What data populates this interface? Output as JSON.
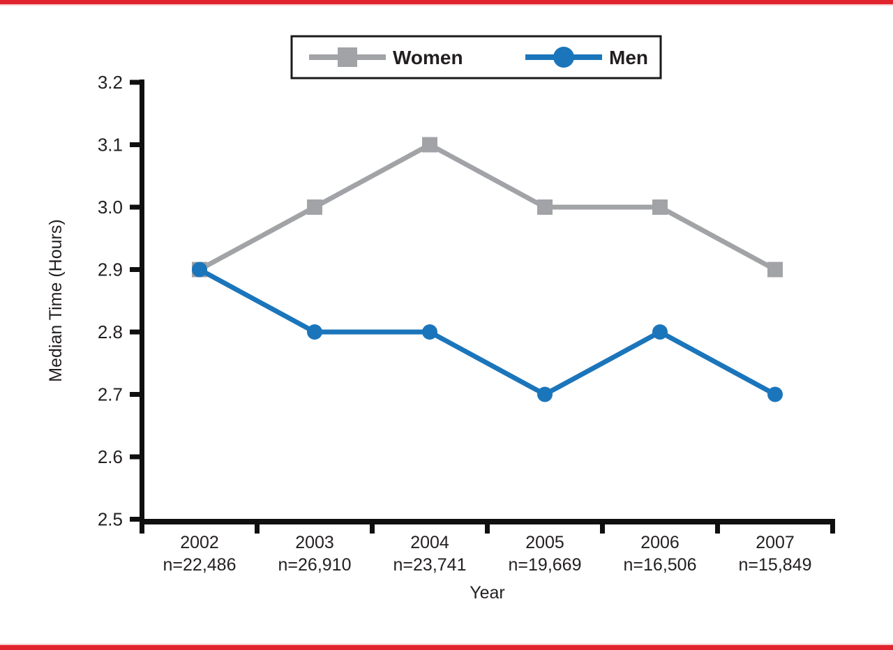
{
  "page": {
    "background": "#ffffff",
    "top_bar_color": "#e1232d",
    "bottom_bar_color": "#e1232d",
    "axis_color": "#0f0f0f",
    "text_color": "#231f20"
  },
  "chart_data": {
    "type": "line",
    "title": "",
    "xlabel": "Year",
    "ylabel": "Median Time (Hours)",
    "x": [
      "2002",
      "2003",
      "2004",
      "2005",
      "2006",
      "2007"
    ],
    "x_sublabels": [
      "n=22,486",
      "n=26,910",
      "n=23,741",
      "n=19,669",
      "n=16,506",
      "n=15,849"
    ],
    "yticks": [
      "2.5",
      "2.6",
      "2.7",
      "2.8",
      "2.9",
      "3.0",
      "3.1",
      "3.2"
    ],
    "ylim": [
      2.5,
      3.2
    ],
    "grid": false,
    "legend_position": "top-center",
    "series": [
      {
        "name": "Women",
        "marker": "square",
        "color": "#a1a3a6",
        "values": [
          2.9,
          3.0,
          3.1,
          3.0,
          3.0,
          2.9
        ]
      },
      {
        "name": "Men",
        "marker": "circle",
        "color": "#1b75bb",
        "values": [
          2.9,
          2.8,
          2.8,
          2.7,
          2.8,
          2.7
        ]
      }
    ]
  }
}
